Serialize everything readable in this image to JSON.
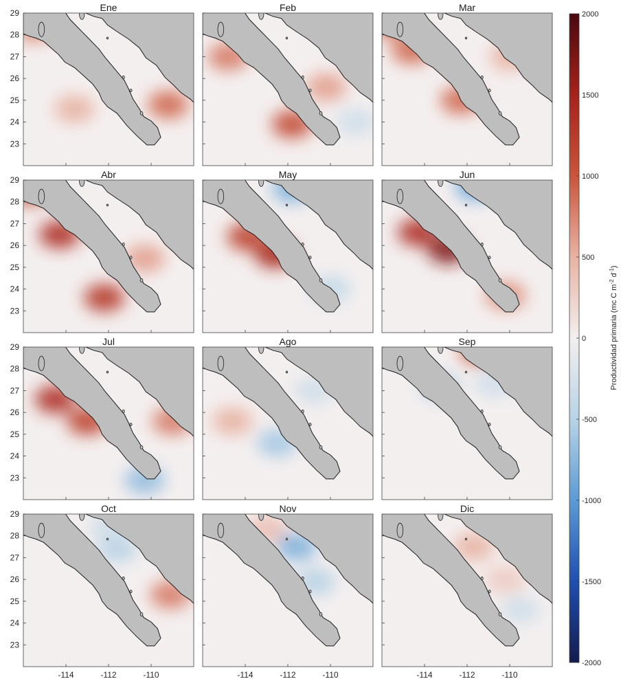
{
  "chart_data": {
    "type": "heatmap",
    "subtype": "monthly map panels with shared diverging colorbar",
    "grid": {
      "rows": 4,
      "cols": 3
    },
    "panels": [
      {
        "title": "Ene",
        "hotspots": [
          {
            "lon": -109.2,
            "lat": 24.8,
            "value": 900
          },
          {
            "lon": -113.6,
            "lat": 24.6,
            "value": 500
          },
          {
            "lon": -115.5,
            "lat": 28.3,
            "value": 700
          }
        ]
      },
      {
        "title": "Feb",
        "hotspots": [
          {
            "lon": -111.8,
            "lat": 23.9,
            "value": 1100
          },
          {
            "lon": -114.8,
            "lat": 27.0,
            "value": 800
          },
          {
            "lon": -110.2,
            "lat": 25.6,
            "value": 600
          },
          {
            "lon": -108.8,
            "lat": 24.0,
            "value": -300
          }
        ]
      },
      {
        "title": "Mar",
        "hotspots": [
          {
            "lon": -114.6,
            "lat": 27.3,
            "value": 900
          },
          {
            "lon": -112.3,
            "lat": 25.0,
            "value": 900
          },
          {
            "lon": -115.6,
            "lat": 28.5,
            "value": 900
          },
          {
            "lon": -110.0,
            "lat": 27.0,
            "value": 500
          }
        ]
      },
      {
        "title": "Abr",
        "hotspots": [
          {
            "lon": -114.3,
            "lat": 26.5,
            "value": 1400
          },
          {
            "lon": -112.2,
            "lat": 23.6,
            "value": 1300
          },
          {
            "lon": -110.3,
            "lat": 25.4,
            "value": 600
          },
          {
            "lon": -115.7,
            "lat": 28.5,
            "value": 1100
          }
        ]
      },
      {
        "title": "May",
        "hotspots": [
          {
            "lon": -112.6,
            "lat": 25.6,
            "value": 1500
          },
          {
            "lon": -113.9,
            "lat": 26.4,
            "value": 1200
          },
          {
            "lon": -111.8,
            "lat": 28.6,
            "value": -800
          },
          {
            "lon": -110.0,
            "lat": 24.0,
            "value": -400
          }
        ]
      },
      {
        "title": "Jun",
        "hotspots": [
          {
            "lon": -112.9,
            "lat": 25.8,
            "value": 1700
          },
          {
            "lon": -114.3,
            "lat": 26.6,
            "value": 1400
          },
          {
            "lon": -111.6,
            "lat": 28.7,
            "value": -900
          },
          {
            "lon": -110.2,
            "lat": 23.7,
            "value": 700
          }
        ]
      },
      {
        "title": "Jul",
        "hotspots": [
          {
            "lon": -114.5,
            "lat": 26.6,
            "value": 1400
          },
          {
            "lon": -113.0,
            "lat": 25.6,
            "value": 1200
          },
          {
            "lon": -110.3,
            "lat": 22.9,
            "value": -700
          },
          {
            "lon": -109.0,
            "lat": 25.6,
            "value": 800
          }
        ]
      },
      {
        "title": "Ago",
        "hotspots": [
          {
            "lon": -114.6,
            "lat": 25.6,
            "value": 500
          },
          {
            "lon": -112.5,
            "lat": 24.6,
            "value": -600
          },
          {
            "lon": -110.8,
            "lat": 27.0,
            "value": -300
          }
        ]
      },
      {
        "title": "Sep",
        "hotspots": [
          {
            "lon": -113.3,
            "lat": 27.2,
            "value": -500
          },
          {
            "lon": -110.7,
            "lat": 27.3,
            "value": -300
          },
          {
            "lon": -111.4,
            "lat": 28.8,
            "value": 900
          }
        ]
      },
      {
        "title": "Oct",
        "hotspots": [
          {
            "lon": -111.6,
            "lat": 27.4,
            "value": -500
          },
          {
            "lon": -109.1,
            "lat": 25.3,
            "value": 800
          },
          {
            "lon": -112.0,
            "lat": 28.4,
            "value": -300
          }
        ]
      },
      {
        "title": "Nov",
        "hotspots": [
          {
            "lon": -111.6,
            "lat": 27.5,
            "value": -800
          },
          {
            "lon": -110.7,
            "lat": 25.9,
            "value": -500
          },
          {
            "lon": -113.0,
            "lat": 28.3,
            "value": 400
          }
        ]
      },
      {
        "title": "Dic",
        "hotspots": [
          {
            "lon": -111.7,
            "lat": 27.5,
            "value": 500
          },
          {
            "lon": -110.2,
            "lat": 26.0,
            "value": 300
          },
          {
            "lon": -109.5,
            "lat": 24.6,
            "value": -300
          }
        ]
      }
    ],
    "x_ticks": [
      -114,
      -112,
      -110
    ],
    "y_ticks": [
      23,
      24,
      25,
      26,
      27,
      28,
      29
    ],
    "x_range": [
      -116,
      -108
    ],
    "y_range": [
      22,
      29
    ],
    "colorbar": {
      "title_text": "Productividad primaria (mc C m",
      "title_sup1": "-2",
      "title_mid": " d",
      "title_sup2": "-1",
      "title_end": ")",
      "ticks": [
        -2000,
        -1500,
        -1000,
        -500,
        0,
        500,
        1000,
        1500,
        2000
      ],
      "range": [
        -2000,
        2000
      ],
      "colors": [
        "#141b4d",
        "#1f4fb0",
        "#5b9bd5",
        "#b7d3e6",
        "#f2efee",
        "#e8b2a3",
        "#c9553b",
        "#a6231b",
        "#4a0810"
      ]
    },
    "land_color": "#bebebe",
    "coast_color": "#1a1a1a"
  }
}
